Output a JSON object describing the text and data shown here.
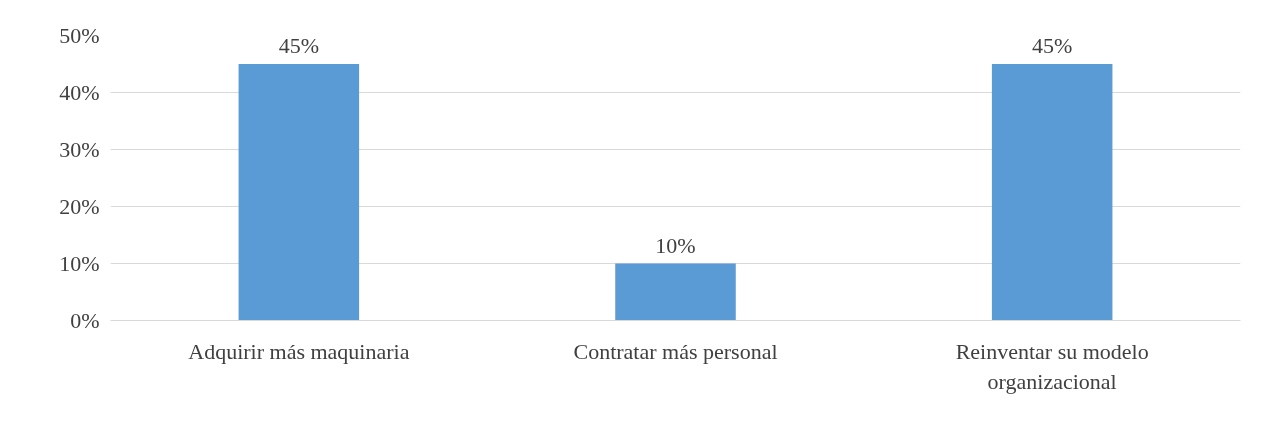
{
  "chart_data": {
    "type": "bar",
    "categories": [
      "Adquirir más maquinaria",
      "Contratar más personal",
      "Reinventar su modelo organizacional"
    ],
    "values": [
      45,
      10,
      45
    ],
    "value_labels": [
      "45%",
      "10%",
      "45%"
    ],
    "color": "#5b9bd5",
    "ylim": [
      0,
      50
    ],
    "yticks": [
      {
        "value": 0,
        "label": "0%"
      },
      {
        "value": 10,
        "label": "10%"
      },
      {
        "value": 20,
        "label": "20%"
      },
      {
        "value": 30,
        "label": "30%"
      },
      {
        "value": 40,
        "label": "40%"
      },
      {
        "value": 50,
        "label": "50%"
      }
    ],
    "grid": "y"
  }
}
